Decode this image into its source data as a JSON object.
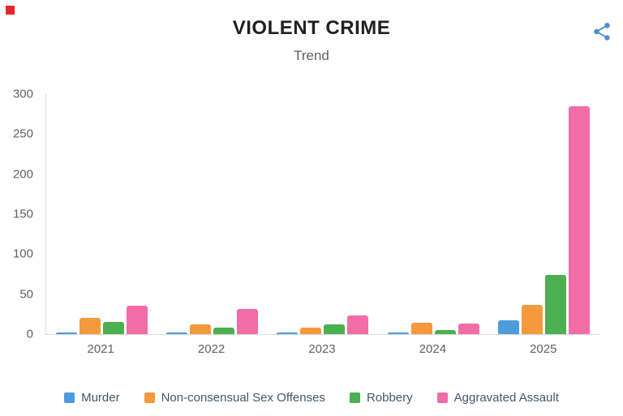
{
  "header": {
    "title": "VIOLENT CRIME",
    "subtitle": "Trend"
  },
  "chart_data": {
    "type": "bar",
    "title": "VIOLENT CRIME",
    "subtitle": "Trend",
    "categories": [
      "2021",
      "2022",
      "2023",
      "2024",
      "2025"
    ],
    "series": [
      {
        "name": "Murder",
        "color": "#4d9cdb",
        "values": [
          2,
          1,
          2,
          1,
          17
        ]
      },
      {
        "name": "Non-consensual Sex Offenses",
        "color": "#f6993c",
        "values": [
          20,
          12,
          8,
          14,
          37
        ]
      },
      {
        "name": "Robbery",
        "color": "#4caf50",
        "values": [
          15,
          8,
          12,
          5,
          74
        ]
      },
      {
        "name": "Aggravated Assault",
        "color": "#f06da8",
        "values": [
          35,
          31,
          23,
          13,
          285
        ]
      }
    ],
    "xlabel": "",
    "ylabel": "",
    "ylim": [
      0,
      300
    ],
    "yticks": [
      0,
      50,
      100,
      150,
      200,
      250,
      300
    ],
    "grid": false,
    "legend_position": "bottom"
  },
  "icons": {
    "share": "share-icon",
    "marker": "red-marker"
  }
}
